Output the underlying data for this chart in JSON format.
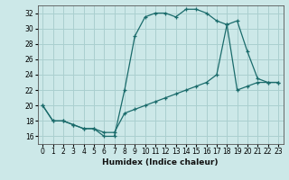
{
  "xlabel": "Humidex (Indice chaleur)",
  "background_color": "#cce8e8",
  "grid_color": "#aacfcf",
  "line_color": "#1a6b6b",
  "xlim": [
    -0.5,
    23.5
  ],
  "ylim": [
    15.0,
    33.0
  ],
  "yticks": [
    16,
    18,
    20,
    22,
    24,
    26,
    28,
    30,
    32
  ],
  "xticks": [
    0,
    1,
    2,
    3,
    4,
    5,
    6,
    7,
    8,
    9,
    10,
    11,
    12,
    13,
    14,
    15,
    16,
    17,
    18,
    19,
    20,
    21,
    22,
    23
  ],
  "series1_x": [
    0,
    1,
    2,
    3,
    4,
    5,
    6,
    7,
    8,
    9,
    10,
    11,
    12,
    13,
    14,
    15,
    16,
    17,
    18,
    19,
    20,
    21,
    22,
    23
  ],
  "series1_y": [
    20,
    18,
    18,
    17.5,
    17,
    17,
    16,
    16,
    22,
    29,
    31.5,
    32,
    32,
    31.5,
    32.5,
    32.5,
    32,
    31,
    30.5,
    31,
    27,
    23.5,
    23,
    23
  ],
  "series2_x": [
    0,
    1,
    2,
    3,
    4,
    5,
    6,
    7,
    8,
    9,
    10,
    11,
    12,
    13,
    14,
    15,
    16,
    17,
    18,
    19,
    20,
    21,
    22,
    23
  ],
  "series2_y": [
    20,
    18,
    18,
    17.5,
    17,
    17,
    16.5,
    16.5,
    19,
    19.5,
    20,
    20.5,
    21,
    21.5,
    22,
    22.5,
    23,
    24,
    30.5,
    22,
    22.5,
    23,
    23,
    23
  ]
}
